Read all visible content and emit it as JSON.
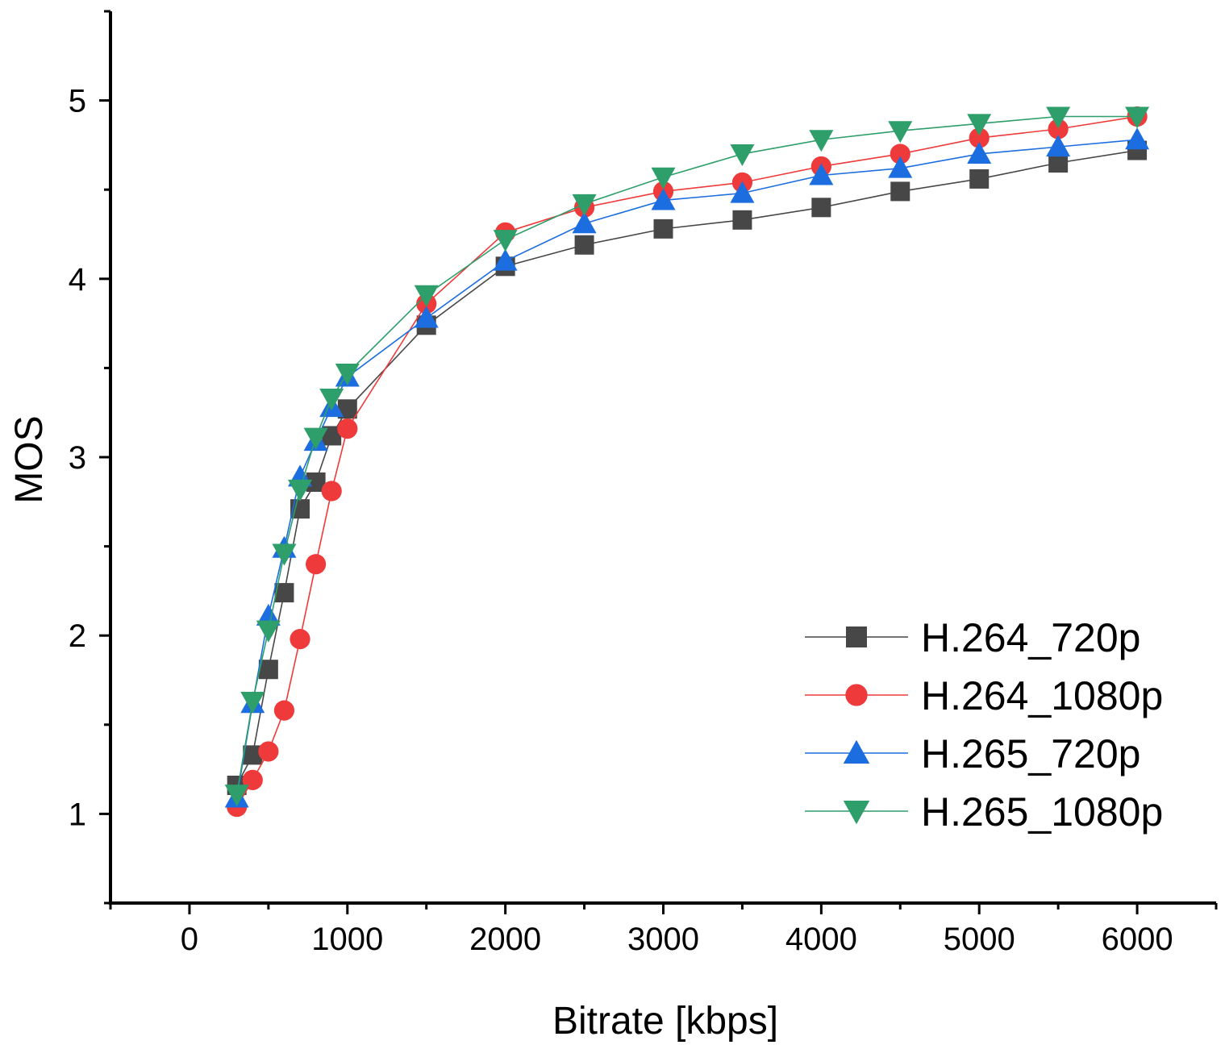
{
  "chart_data": {
    "type": "line",
    "title": "",
    "xlabel": "Bitrate [kbps]",
    "ylabel": "MOS",
    "xlim": [
      -500,
      6500
    ],
    "ylim": [
      0.5,
      5.5
    ],
    "x_ticks": [
      0,
      1000,
      2000,
      3000,
      4000,
      5000,
      6000
    ],
    "x_tick_labels": [
      "0",
      "1000",
      "2000",
      "3000",
      "4000",
      "5000",
      "6000"
    ],
    "y_ticks": [
      1,
      2,
      3,
      4,
      5
    ],
    "y_tick_labels": [
      "1",
      "2",
      "3",
      "4",
      "5"
    ],
    "grid": false,
    "legend_position": "bottom-right",
    "x": [
      300,
      400,
      500,
      600,
      700,
      800,
      900,
      1000,
      1500,
      2000,
      2500,
      3000,
      3500,
      4000,
      4500,
      5000,
      5500,
      6000
    ],
    "series": [
      {
        "name": "H.264_720p",
        "color": "#474747",
        "marker": "square",
        "values": [
          1.16,
          1.33,
          1.81,
          2.24,
          2.71,
          2.86,
          3.12,
          3.27,
          3.74,
          4.07,
          4.19,
          4.28,
          4.33,
          4.4,
          4.49,
          4.56,
          4.65,
          4.72
        ]
      },
      {
        "name": "H.264_1080p",
        "color": "#ee3a3a",
        "marker": "circle",
        "values": [
          1.04,
          1.19,
          1.35,
          1.58,
          1.98,
          2.4,
          2.81,
          3.16,
          3.86,
          4.26,
          4.4,
          4.49,
          4.54,
          4.63,
          4.7,
          4.79,
          4.84,
          4.91
        ]
      },
      {
        "name": "H.265_720p",
        "color": "#1c6ee0",
        "marker": "triangle-up",
        "values": [
          1.09,
          1.62,
          2.11,
          2.49,
          2.89,
          3.09,
          3.28,
          3.45,
          3.78,
          4.1,
          4.31,
          4.44,
          4.48,
          4.58,
          4.62,
          4.7,
          4.74,
          4.78
        ]
      },
      {
        "name": "H.265_1080p",
        "color": "#2e9e6a",
        "marker": "triangle-down",
        "values": [
          1.11,
          1.63,
          2.03,
          2.46,
          2.82,
          3.11,
          3.33,
          3.47,
          3.91,
          4.22,
          4.42,
          4.57,
          4.7,
          4.78,
          4.83,
          4.87,
          4.91,
          4.91
        ]
      }
    ]
  }
}
